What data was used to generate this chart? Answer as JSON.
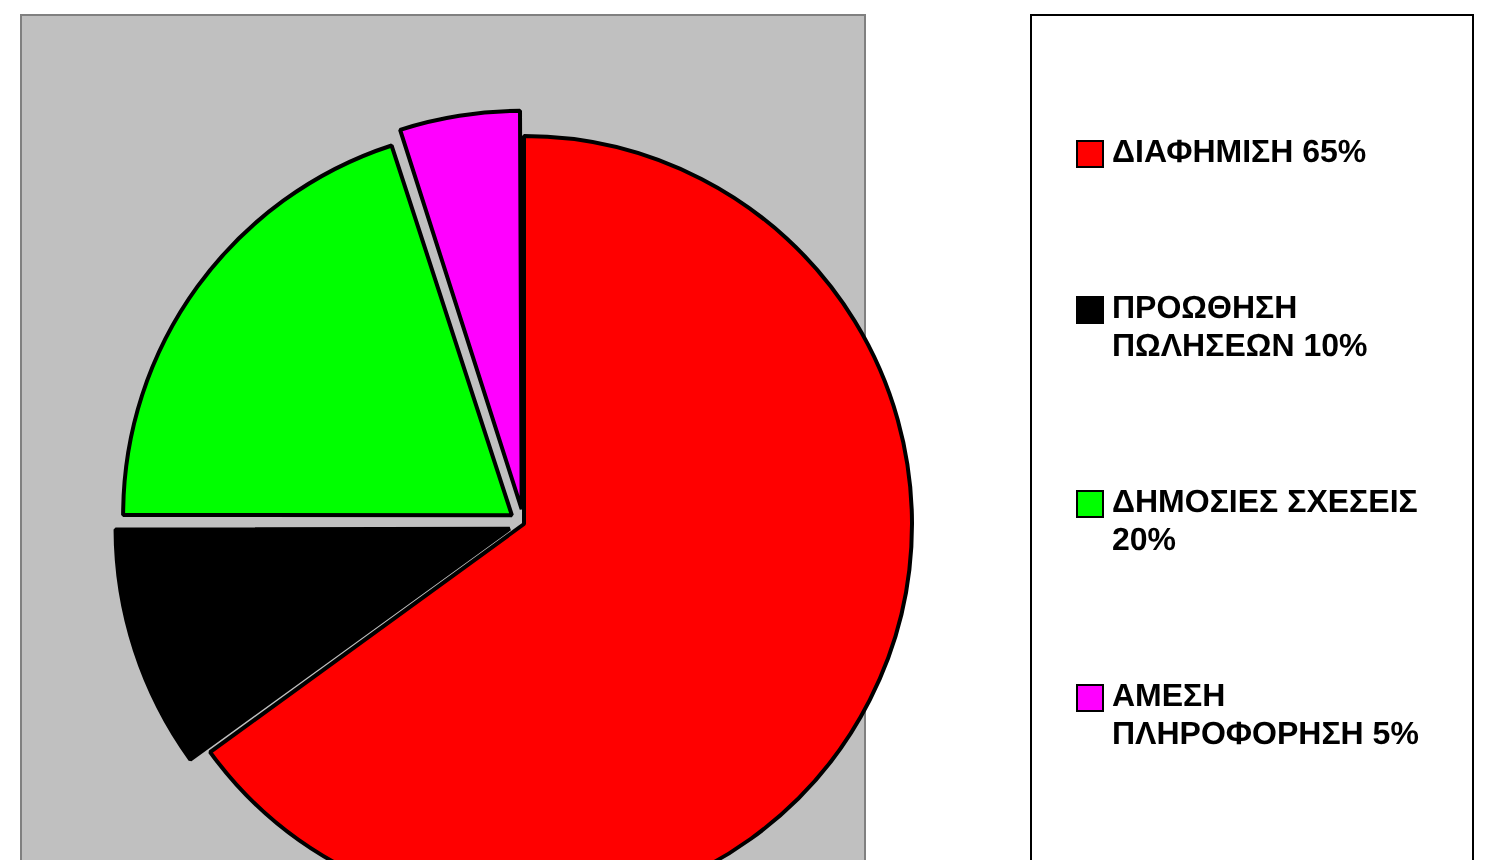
{
  "chart_data": {
    "type": "pie",
    "categories": [
      "ΔΙΑΦΗΜΙΣΗ 65%",
      "ΠΡΟΩΘΗΣΗ ΠΩΛΗΣΕΩΝ 10%",
      "ΔΗΜΟΣΙΕΣ ΣΧΕΣΕΙΣ 20%",
      "ΑΜΕΣΗ ΠΛΗΡΟΦΟΡΗΣΗ 5%"
    ],
    "values": [
      65,
      10,
      20,
      5
    ],
    "colors": [
      "#ff0000",
      "#000000",
      "#00ff00",
      "#ff00ff"
    ],
    "legend": "right"
  }
}
